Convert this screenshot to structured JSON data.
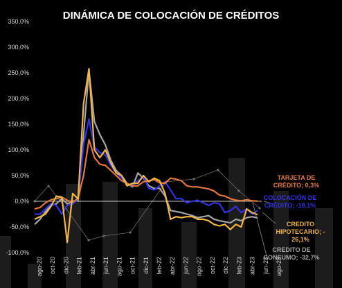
{
  "chart_data": {
    "type": "line",
    "title": "DINÁMICA DE COLOCACIÓN DE CRÉDITOS",
    "ylim": [
      -100,
      350
    ],
    "y_ticks": [
      "350,0%",
      "300,0%",
      "250,0%",
      "200,0%",
      "150,0%",
      "100,0%",
      "50,0%",
      "0,0%",
      "-50,0%",
      "-100,0%"
    ],
    "y_tick_values": [
      350,
      300,
      250,
      200,
      150,
      100,
      50,
      0,
      -50,
      -100
    ],
    "x_tick_labels": [
      "ago-20",
      "oct-20",
      "dic-20",
      "feb-21",
      "abr-21",
      "jun-21",
      "ago-21",
      "oct-21",
      "dic-21",
      "feb-22",
      "abr-22",
      "jun-22",
      "ago-22",
      "oct-22",
      "dic-22",
      "feb-23",
      "abr-23",
      "jun-23",
      "ago-23"
    ],
    "x_start": "ago-20",
    "grid": false,
    "colors": {
      "tarjeta": "#e0783f",
      "colocacion": "#3333e6",
      "hipotecario": "#f2b546",
      "consumo": "#a6a6a6",
      "background_bars": "#1c1c1c",
      "background_line": "#6e6e6e",
      "zero_line": "#ffffff"
    },
    "series": [
      {
        "name": "TARJETA DE CRÉDITO",
        "color_key": "tarjeta",
        "values": [
          -15,
          -12,
          -3,
          3,
          5,
          8,
          2,
          -2,
          6,
          50,
          120,
          85,
          72,
          70,
          60,
          50,
          40,
          35,
          30,
          30,
          38,
          40,
          42,
          36,
          35,
          45,
          43,
          40,
          30,
          28,
          28,
          26,
          24,
          20,
          12,
          10,
          5,
          2,
          1,
          3,
          1,
          0.3
        ]
      },
      {
        "name": "COLOCACIÓN DE CRÉDITO",
        "color_key": "colocacion",
        "values": [
          -25,
          -25,
          -15,
          -5,
          -8,
          -25,
          -8,
          -5,
          5,
          110,
          160,
          105,
          95,
          90,
          70,
          55,
          45,
          33,
          30,
          40,
          48,
          25,
          22,
          30,
          38,
          22,
          5,
          5,
          -3,
          0,
          2,
          -3,
          -8,
          -3,
          -5,
          -22,
          -18,
          -10,
          -22,
          -15,
          -25,
          -18.1
        ]
      },
      {
        "name": "CREDITO HIPOTECARIO",
        "color_key": "hipotecario",
        "values": [
          -35,
          -30,
          -25,
          -10,
          10,
          8,
          -80,
          15,
          5,
          190,
          258,
          100,
          85,
          100,
          75,
          55,
          50,
          30,
          35,
          35,
          50,
          38,
          45,
          40,
          15,
          -35,
          -30,
          -32,
          -30,
          -30,
          -35,
          -35,
          -38,
          -45,
          -48,
          -45,
          -55,
          -45,
          -50,
          -15,
          -22,
          -26.1
        ]
      },
      {
        "name": "CREDITO DE CONSUMO",
        "color_key": "consumo",
        "values": [
          -45,
          -35,
          -20,
          -8,
          -5,
          5,
          -5,
          0,
          2,
          130,
          255,
          155,
          130,
          110,
          80,
          60,
          50,
          35,
          28,
          55,
          45,
          30,
          25,
          25,
          10,
          -18,
          -20,
          -22,
          -25,
          -28,
          -32,
          -30,
          -28,
          -35,
          -38,
          -40,
          -42,
          -35,
          -38,
          -32,
          -30,
          -32.7
        ]
      }
    ],
    "annotations": [
      {
        "key": "tarjeta",
        "lines": [
          "TARJETA DE",
          "CRÉDITO; 0,3%"
        ]
      },
      {
        "key": "colocacion",
        "lines": [
          "COLOCACIÓN DE",
          "CRÉDITO; -18,1%"
        ]
      },
      {
        "key": "hipotecario",
        "lines": [
          "CREDITO",
          "HIPOTECARIO; -",
          "26,1%"
        ]
      },
      {
        "key": "consumo",
        "lines": [
          "CREDITO DE",
          "CONSUMO; -32,7%"
        ]
      }
    ]
  }
}
